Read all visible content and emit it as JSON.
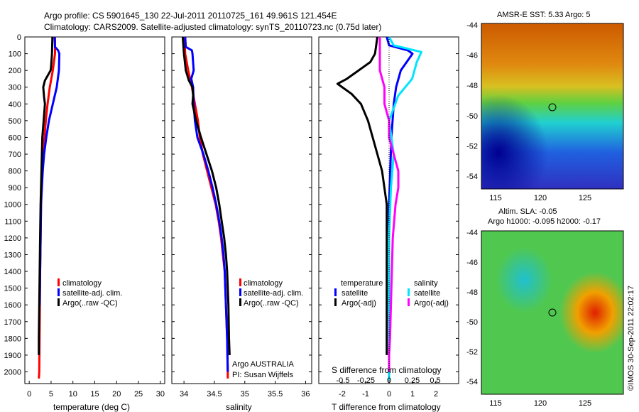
{
  "title_line1": "Argo profile: CS 5901645_130 22-Jul-2011 20110725_161 49.961S 121.454E",
  "title_line2": "Climatology: CARS2009. Satellite-adjusted climatology: synTS_20110723.nc (0.75d later)",
  "colors": {
    "red": "#ff0000",
    "blue": "#0000ff",
    "black": "#000000",
    "cyan": "#00e5ff",
    "magenta": "#ff00ff"
  },
  "depth_ticks": [
    "0",
    "100",
    "200",
    "300",
    "400",
    "500",
    "600",
    "700",
    "800",
    "900",
    "1000",
    "1100",
    "1200",
    "1300",
    "1400",
    "1500",
    "1600",
    "1700",
    "1800",
    "1900",
    "2000"
  ],
  "panels": {
    "temperature": {
      "xlabel": "temperature (deg C)",
      "ticks": [
        "0",
        "5",
        "10",
        "15",
        "20",
        "25",
        "30"
      ],
      "legend": [
        "climatology",
        "satellite-adj. clim.",
        "Argo(..raw -QC)"
      ]
    },
    "salinity": {
      "xlabel": "salinity",
      "ticks": [
        "34",
        "34.5",
        "35",
        "35.5",
        "36"
      ],
      "legend": [
        "climatology",
        "satellite-adj. clim.",
        "Argo(..raw -QC)"
      ],
      "note1": "Argo AUSTRALIA",
      "note2": "PI: Susan Wijffels"
    },
    "difference": {
      "xlabel": "T difference from climatology",
      "top_label": "S difference from climatology",
      "t_ticks": [
        "-2",
        "-1",
        "0",
        "1",
        "2"
      ],
      "s_ticks": [
        "-0.5",
        "-0.25",
        "0",
        "0.25",
        "0.5"
      ],
      "legend_temperature_head": "temperature",
      "legend_temperature": [
        "satellite",
        "Argo(-adj)"
      ],
      "legend_salinity_head": "salinity",
      "legend_salinity": [
        "satellite",
        "Argo(-adj)"
      ]
    }
  },
  "maps": {
    "sst": {
      "title": "AMSR-E SST: 5.33 Argo: 5",
      "lat_ticks": [
        "-44",
        "-46",
        "-48",
        "-50",
        "-52",
        "-54"
      ],
      "lon_ticks": [
        "115",
        "120",
        "125"
      ]
    },
    "sla": {
      "title1": "Altim. SLA: -0.05",
      "title2": "Argo h1000: -0.095 h2000: -0.17",
      "lat_ticks": [
        "-44",
        "-46",
        "-48",
        "-50",
        "-52",
        "-54"
      ],
      "lon_ticks": [
        "115",
        "120",
        "125"
      ]
    },
    "credit": "©IMOS 30-Sep-2011 22:02:17"
  },
  "chart_data": [
    {
      "type": "line",
      "name": "temperature",
      "xlabel": "temperature (deg C)",
      "ylabel": "",
      "xlim": [
        -1,
        31
      ],
      "ylim": [
        2070,
        0
      ],
      "series": [
        {
          "name": "climatology",
          "color": "red",
          "points": [
            [
              5.9,
              0
            ],
            [
              5.9,
              100
            ],
            [
              5.4,
              200
            ],
            [
              4.7,
              300
            ],
            [
              4.2,
              400
            ],
            [
              3.8,
              500
            ],
            [
              3.5,
              600
            ],
            [
              3.2,
              700
            ],
            [
              3.0,
              800
            ],
            [
              2.8,
              900
            ],
            [
              2.7,
              1000
            ],
            [
              2.6,
              1200
            ],
            [
              2.5,
              1400
            ],
            [
              2.4,
              1700
            ],
            [
              2.3,
              2000
            ],
            [
              2.2,
              2040
            ]
          ]
        },
        {
          "name": "satellite-adj. clim.",
          "color": "blue",
          "points": [
            [
              5.8,
              0
            ],
            [
              5.9,
              60
            ],
            [
              6.6,
              80
            ],
            [
              6.9,
              100
            ],
            [
              6.8,
              200
            ],
            [
              6.3,
              300
            ],
            [
              5.4,
              400
            ],
            [
              4.5,
              500
            ],
            [
              3.9,
              600
            ],
            [
              3.4,
              700
            ],
            [
              3.1,
              800
            ],
            [
              2.9,
              900
            ],
            [
              2.7,
              1000
            ],
            [
              2.6,
              1200
            ],
            [
              2.5,
              1400
            ],
            [
              2.4,
              1600
            ]
          ]
        },
        {
          "name": "Argo(..raw -QC)",
          "color": "black",
          "points": [
            [
              5.3,
              0
            ],
            [
              5.2,
              100
            ],
            [
              5.0,
              180
            ],
            [
              4.9,
              200
            ],
            [
              3.6,
              260
            ],
            [
              3.2,
              300
            ],
            [
              3.4,
              360
            ],
            [
              3.6,
              400
            ],
            [
              3.3,
              500
            ],
            [
              3.0,
              600
            ],
            [
              2.9,
              700
            ],
            [
              2.8,
              800
            ],
            [
              2.7,
              900
            ],
            [
              2.6,
              1000
            ],
            [
              2.5,
              1200
            ],
            [
              2.4,
              1400
            ],
            [
              2.3,
              1600
            ],
            [
              2.2,
              1800
            ],
            [
              2.2,
              1900
            ]
          ]
        }
      ]
    },
    {
      "type": "line",
      "name": "salinity",
      "xlabel": "salinity",
      "ylabel": "",
      "xlim": [
        33.8,
        36.1
      ],
      "ylim": [
        2070,
        0
      ],
      "series": [
        {
          "name": "climatology",
          "color": "red",
          "points": [
            [
              34.01,
              0
            ],
            [
              34.02,
              100
            ],
            [
              34.07,
              200
            ],
            [
              34.13,
              300
            ],
            [
              34.18,
              400
            ],
            [
              34.23,
              500
            ],
            [
              34.26,
              600
            ],
            [
              34.31,
              700
            ],
            [
              34.38,
              800
            ],
            [
              34.45,
              900
            ],
            [
              34.52,
              1000
            ],
            [
              34.57,
              1100
            ],
            [
              34.61,
              1200
            ],
            [
              34.64,
              1300
            ],
            [
              34.67,
              1400
            ],
            [
              34.69,
              1600
            ],
            [
              34.71,
              1800
            ],
            [
              34.72,
              2000
            ],
            [
              34.72,
              2040
            ]
          ]
        },
        {
          "name": "satellite-adj. clim.",
          "color": "blue",
          "points": [
            [
              34.02,
              0
            ],
            [
              34.03,
              60
            ],
            [
              34.13,
              80
            ],
            [
              34.14,
              100
            ],
            [
              34.16,
              200
            ],
            [
              34.12,
              250
            ],
            [
              34.15,
              300
            ],
            [
              34.16,
              400
            ],
            [
              34.18,
              500
            ],
            [
              34.22,
              600
            ],
            [
              34.32,
              700
            ],
            [
              34.4,
              800
            ],
            [
              34.47,
              900
            ],
            [
              34.53,
              1000
            ],
            [
              34.58,
              1100
            ],
            [
              34.62,
              1200
            ],
            [
              34.65,
              1300
            ],
            [
              34.67,
              1400
            ],
            [
              34.69,
              1600
            ],
            [
              34.71,
              1800
            ],
            [
              34.72,
              2000
            ]
          ]
        },
        {
          "name": "Argo(..raw -QC)",
          "color": "black",
          "points": [
            [
              33.98,
              0
            ],
            [
              34.0,
              100
            ],
            [
              34.03,
              200
            ],
            [
              34.08,
              260
            ],
            [
              34.14,
              300
            ],
            [
              34.15,
              350
            ],
            [
              34.14,
              400
            ],
            [
              34.2,
              500
            ],
            [
              34.28,
              600
            ],
            [
              34.37,
              700
            ],
            [
              34.46,
              800
            ],
            [
              34.53,
              900
            ],
            [
              34.58,
              1000
            ],
            [
              34.62,
              1100
            ],
            [
              34.66,
              1200
            ],
            [
              34.69,
              1300
            ],
            [
              34.71,
              1400
            ],
            [
              34.73,
              1600
            ],
            [
              34.74,
              1800
            ],
            [
              34.75,
              1900
            ]
          ]
        }
      ]
    },
    {
      "type": "line",
      "name": "difference",
      "xlabel": "T difference from climatology",
      "ylabel": "",
      "xlim": [
        -2.5,
        3
      ],
      "ylim": [
        2070,
        0
      ],
      "series": [
        {
          "name": "temperature satellite",
          "color": "blue",
          "points": [
            [
              -0.1,
              0
            ],
            [
              0.0,
              50
            ],
            [
              0.8,
              80
            ],
            [
              1.0,
              100
            ],
            [
              0.5,
              200
            ],
            [
              0.3,
              300
            ],
            [
              0.2,
              400
            ],
            [
              0.1,
              600
            ],
            [
              0.05,
              800
            ],
            [
              0.0,
              1000
            ],
            [
              0.0,
              1400
            ],
            [
              0.0,
              1600
            ]
          ]
        },
        {
          "name": "temperature Argo(-adj)",
          "color": "black",
          "points": [
            [
              -0.5,
              0
            ],
            [
              -0.6,
              100
            ],
            [
              -0.8,
              150
            ],
            [
              -1.8,
              250
            ],
            [
              -2.2,
              280
            ],
            [
              -1.6,
              340
            ],
            [
              -1.2,
              400
            ],
            [
              -0.9,
              500
            ],
            [
              -0.7,
              600
            ],
            [
              -0.5,
              700
            ],
            [
              -0.3,
              800
            ],
            [
              -0.2,
              900
            ],
            [
              -0.1,
              1000
            ],
            [
              -0.1,
              1200
            ],
            [
              -0.1,
              1400
            ],
            [
              -0.1,
              1600
            ],
            [
              -0.1,
              1900
            ]
          ]
        },
        {
          "name": "salinity satellite",
          "color": "cyan",
          "points": [
            [
              0.0,
              0
            ],
            [
              0.05,
              50
            ],
            [
              0.35,
              90
            ],
            [
              0.3,
              150
            ],
            [
              0.25,
              250
            ],
            [
              0.1,
              350
            ],
            [
              0.0,
              500
            ],
            [
              0.05,
              700
            ],
            [
              0.02,
              900
            ],
            [
              0.0,
              1200
            ],
            [
              0.0,
              1600
            ],
            [
              0.0,
              2000
            ],
            [
              0.0,
              2050
            ]
          ]
        },
        {
          "name": "salinity Argo(-adj)",
          "color": "magenta",
          "points": [
            [
              -0.1,
              0
            ],
            [
              -0.1,
              200
            ],
            [
              -0.05,
              300
            ],
            [
              -0.05,
              400
            ],
            [
              0.0,
              500
            ],
            [
              0.0,
              600
            ],
            [
              0.05,
              700
            ],
            [
              0.1,
              800
            ],
            [
              0.1,
              900
            ],
            [
              0.07,
              1000
            ],
            [
              0.04,
              1200
            ],
            [
              0.03,
              1400
            ],
            [
              0.02,
              1600
            ],
            [
              0.01,
              1800
            ],
            [
              0.0,
              1900
            ],
            [
              0.0,
              2000
            ]
          ]
        }
      ]
    }
  ]
}
